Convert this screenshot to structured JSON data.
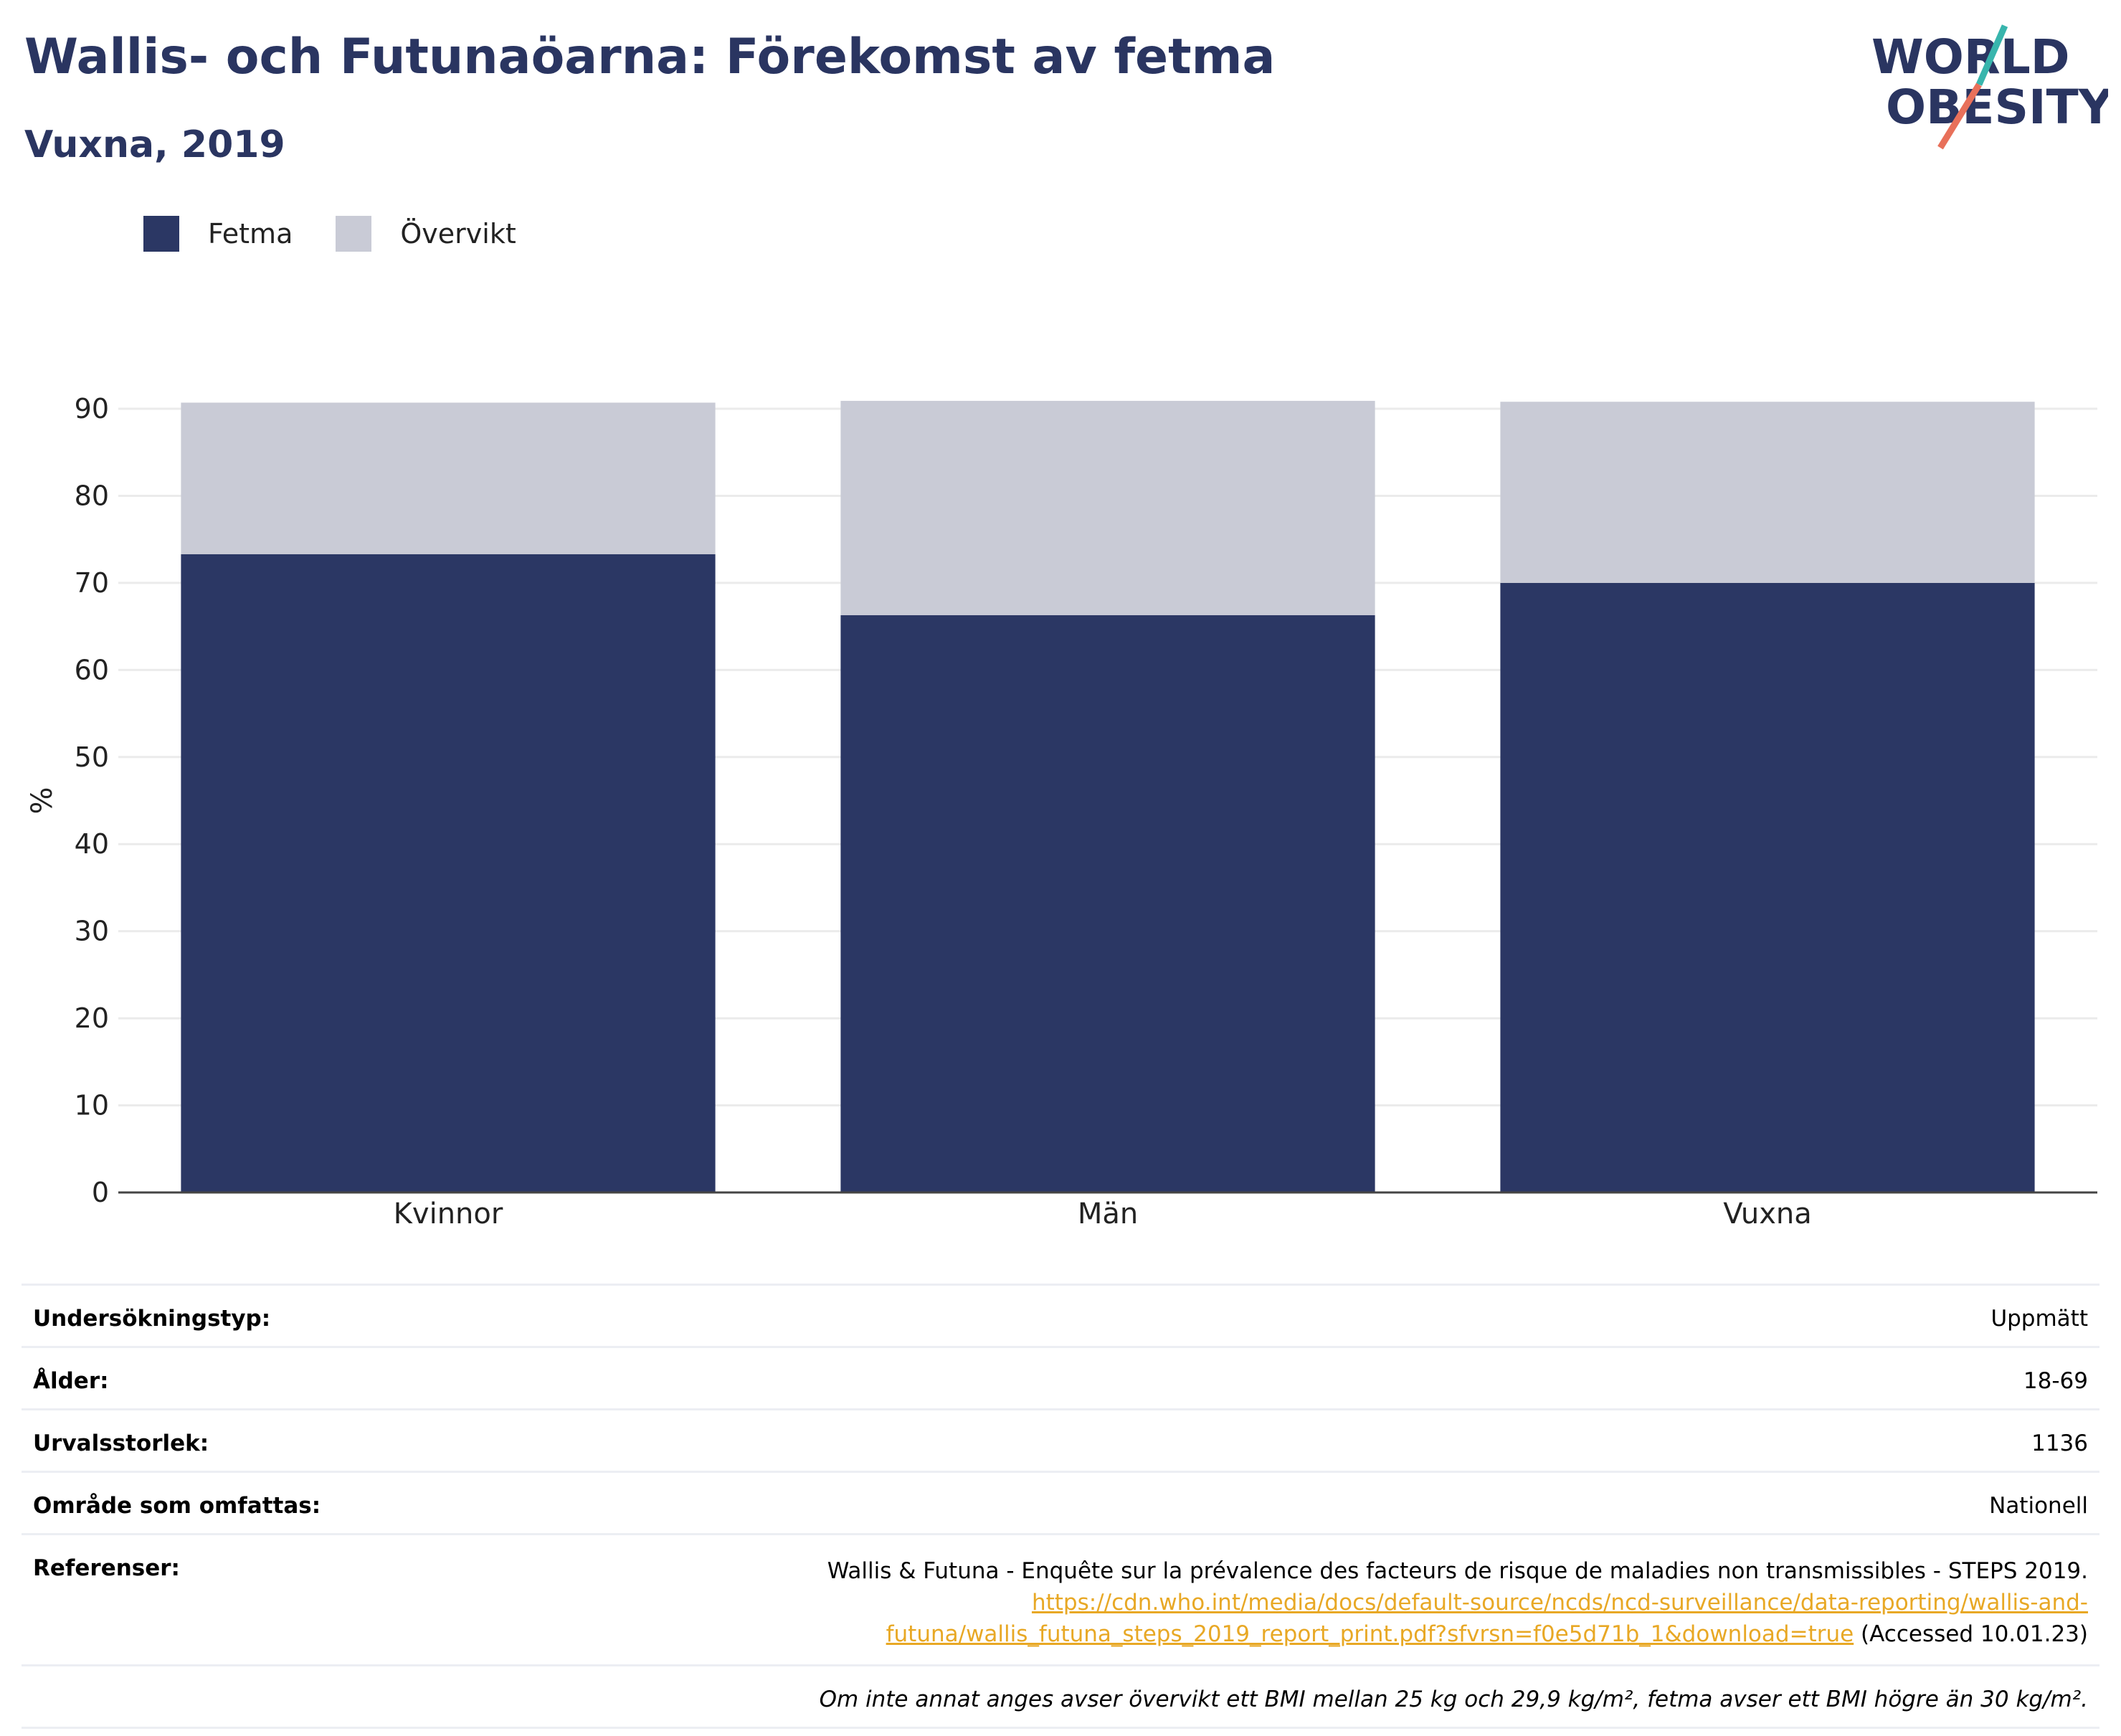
{
  "title": "Wallis- och Futunaöarna: Förekomst av fetma",
  "subtitle": "Vuxna, 2019",
  "logo": {
    "line1": "WORLD",
    "line2": "OBESITY",
    "colors": {
      "text": "#2a3561",
      "slash_teal": "#38b5ad",
      "slash_red": "#e8705a"
    }
  },
  "legend": [
    {
      "label": "Fetma",
      "color": "#2b3764"
    },
    {
      "label": "Övervikt",
      "color": "#c9cbd6"
    }
  ],
  "chart_data": {
    "type": "bar",
    "stacked": true,
    "categories": [
      "Kvinnor",
      "Män",
      "Vuxna"
    ],
    "series": [
      {
        "name": "Fetma",
        "values": [
          73.3,
          66.3,
          70.0
        ],
        "color": "#2b3764"
      },
      {
        "name": "Övervikt",
        "values": [
          17.4,
          24.6,
          20.8
        ],
        "color": "#c9cbd6"
      }
    ],
    "ylabel": "%",
    "ylim": [
      0,
      90
    ],
    "yticks": [
      0,
      10,
      20,
      30,
      40,
      50,
      60,
      70,
      80,
      90
    ],
    "grid": true,
    "legend_position": "top-left"
  },
  "info": {
    "survey_type": {
      "label": "Undersökningstyp:",
      "value": "Uppmätt"
    },
    "age": {
      "label": "Ålder:",
      "value": "18-69"
    },
    "sample_size": {
      "label": "Urvalsstorlek:",
      "value": "1136"
    },
    "area": {
      "label": "Område som omfattas:",
      "value": "Nationell"
    },
    "references": {
      "label": "Referenser:",
      "text": "Wallis & Futuna - Enquête sur la prévalence des facteurs de risque de maladies non transmissibles - STEPS 2019.",
      "link_line1": "https://cdn.who.int/media/docs/default-source/ncds/ncd-surveillance/data-reporting/wallis-and-",
      "link_line2": "futuna/wallis_futuna_steps_2019_report_print.pdf?sfvrsn=f0e5d71b_1&download=true",
      "accessed": "(Accessed 10.01.23)"
    },
    "note": "Om inte annat anges avser övervikt ett BMI mellan 25 kg och 29,9 kg/m², fetma avser ett BMI högre än 30 kg/m²."
  }
}
